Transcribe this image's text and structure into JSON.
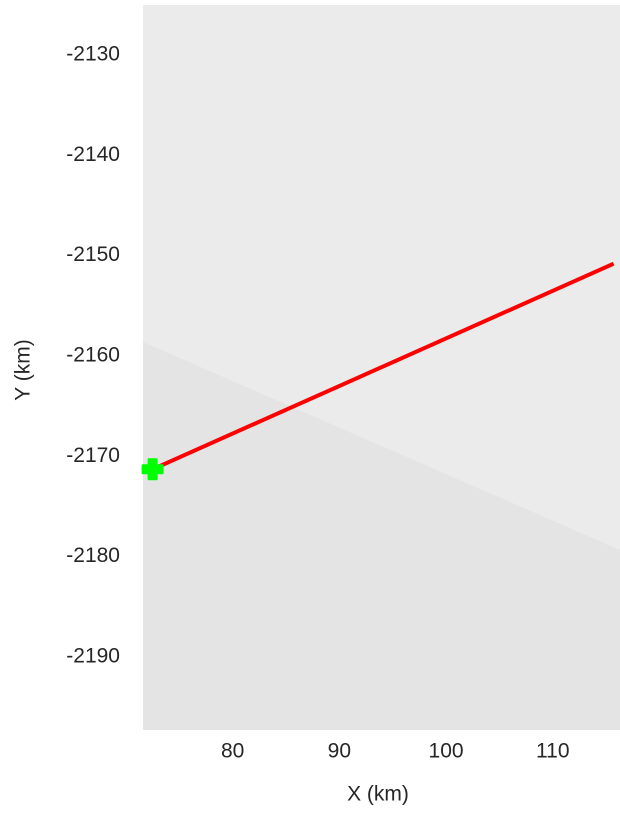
{
  "chart_data": {
    "type": "line",
    "x_label": "X (km)",
    "y_label": "Y (km)",
    "x": [
      72.5,
      115.7
    ],
    "values": [
      -2171.3,
      -2150.8
    ],
    "color": "#ff0000",
    "marker": {
      "x": 72.5,
      "y": -2171.3,
      "color": "#00ff00"
    },
    "xlim": [
      71.6,
      116.3
    ],
    "ylim": [
      -2197.3,
      -2125
    ],
    "xticks": [
      80,
      90,
      100,
      110
    ],
    "yticks": [
      -2130,
      -2140,
      -2150,
      -2160,
      -2170,
      -2180,
      -2190
    ],
    "grid": false
  }
}
